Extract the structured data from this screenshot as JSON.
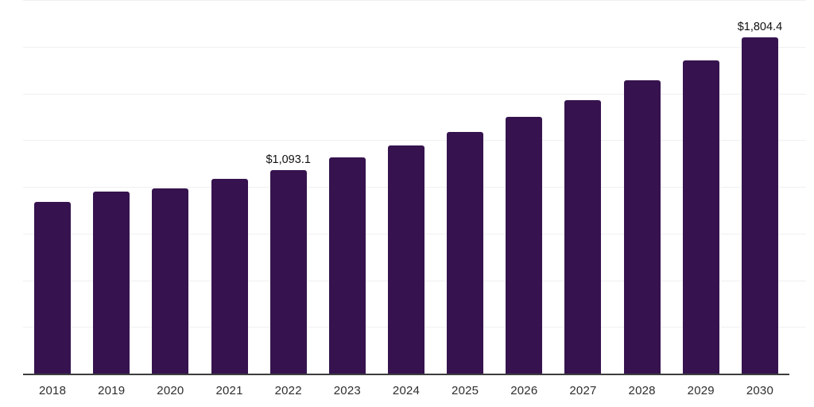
{
  "chart_data": {
    "type": "bar",
    "title": "",
    "xlabel": "",
    "ylabel": "",
    "categories": [
      "2018",
      "2019",
      "2020",
      "2021",
      "2022",
      "2023",
      "2024",
      "2025",
      "2026",
      "2027",
      "2028",
      "2029",
      "2030"
    ],
    "values": [
      921.5,
      977.4,
      993.0,
      1044.0,
      1093.1,
      1160.4,
      1224.1,
      1297.9,
      1377.4,
      1465.0,
      1571.4,
      1677.8,
      1804.4
    ],
    "data_labels": [
      "",
      "",
      "",
      "",
      "$1,093.1",
      "",
      "",
      "",
      "",
      "",
      "",
      "",
      "$1,804.4"
    ],
    "labeled_values": {
      "2022": "$1,093.1",
      "2030": "$1,804.4"
    },
    "value_prefix": "$",
    "ylim": [
      0,
      2000
    ],
    "gridline_interval": 250,
    "grid": true,
    "y_tick_labels_visible": false,
    "legend_position": "none",
    "colors": {
      "bar": "#36134e",
      "gridline": "#f0f0f0",
      "axis": "#3d3d3d",
      "data_label": "#101010",
      "tick_label": "#2e2e2e",
      "background": "#ffffff"
    }
  }
}
